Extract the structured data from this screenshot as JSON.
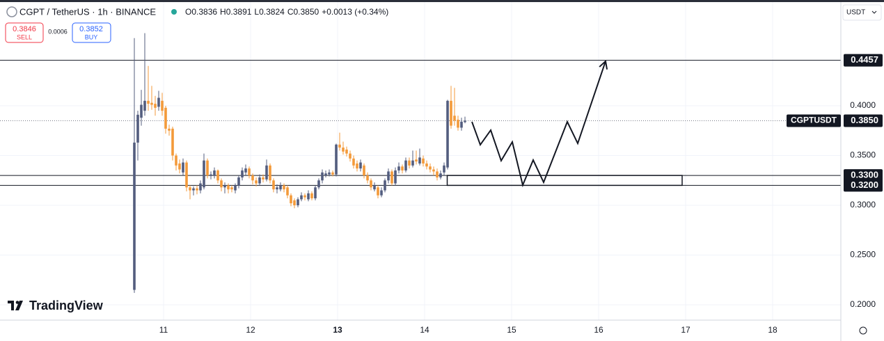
{
  "chart_data": {
    "type": "candlestick",
    "title": "CGPT / TetherUS · 1h · BINANCE",
    "header_values": [
      "O0.3836",
      "H0.3891",
      "L0.3824",
      "C0.3850",
      "+0.0013 (+0.34%)"
    ],
    "trade": {
      "sell_price": "0.3846",
      "sell_label": "SELL",
      "spread": "0.0006",
      "buy_price": "0.3852",
      "buy_label": "BUY"
    },
    "currency": "USDT",
    "watermark": "TradingView",
    "symbol_label": "CGPTUSDT",
    "up_color": "#535d7e",
    "down_color": "#f39a3a",
    "grid": true,
    "xlim": [
      9.12,
      18.784
    ],
    "ylim": [
      0.1846,
      0.5063
    ],
    "xticks": [
      11,
      12,
      13,
      14,
      15,
      16,
      17,
      18
    ],
    "bold_xticks": [
      13
    ],
    "yticks": [
      {
        "value": 0.2,
        "label": "0.2000"
      },
      {
        "value": 0.25,
        "label": "0.2500"
      },
      {
        "value": 0.3,
        "label": "0.3000"
      },
      {
        "value": 0.35,
        "label": "0.3500"
      },
      {
        "value": 0.4,
        "label": "0.4000"
      }
    ],
    "x": [
      10.664,
      10.704,
      10.744,
      10.784,
      10.824,
      10.864,
      10.904,
      10.944,
      10.984,
      11.024,
      11.064,
      11.104,
      11.144,
      11.184,
      11.224,
      11.264,
      11.304,
      11.344,
      11.384,
      11.424,
      11.464,
      11.504,
      11.544,
      11.584,
      11.624,
      11.664,
      11.704,
      11.744,
      11.784,
      11.824,
      11.864,
      11.904,
      11.944,
      11.984,
      12.024,
      12.064,
      12.104,
      12.144,
      12.184,
      12.224,
      12.264,
      12.304,
      12.344,
      12.384,
      12.424,
      12.464,
      12.504,
      12.544,
      12.584,
      12.624,
      12.664,
      12.704,
      12.744,
      12.784,
      12.824,
      12.864,
      12.904,
      12.944,
      12.984,
      13.024,
      13.064,
      13.104,
      13.144,
      13.184,
      13.224,
      13.264,
      13.304,
      13.344,
      13.384,
      13.424,
      13.464,
      13.504,
      13.544,
      13.584,
      13.624,
      13.664,
      13.704,
      13.744,
      13.784,
      13.824,
      13.864,
      13.904,
      13.944,
      13.984,
      14.024,
      14.064,
      14.104,
      14.144,
      14.184,
      14.224,
      14.264,
      14.304,
      14.344,
      14.384,
      14.424,
      14.464
    ],
    "open": [
      0.215,
      0.363,
      0.388,
      0.395,
      0.405,
      0.403,
      0.402,
      0.399,
      0.405,
      0.398,
      0.377,
      0.377,
      0.35,
      0.342,
      0.333,
      0.343,
      0.318,
      0.315,
      0.317,
      0.315,
      0.318,
      0.345,
      0.33,
      0.33,
      0.335,
      0.325,
      0.318,
      0.32,
      0.318,
      0.315,
      0.32,
      0.328,
      0.333,
      0.337,
      0.33,
      0.325,
      0.322,
      0.328,
      0.326,
      0.34,
      0.325,
      0.316,
      0.316,
      0.32,
      0.318,
      0.31,
      0.305,
      0.3,
      0.306,
      0.31,
      0.306,
      0.312,
      0.307,
      0.318,
      0.325,
      0.33,
      0.331,
      0.333,
      0.331,
      0.361,
      0.358,
      0.356,
      0.352,
      0.347,
      0.342,
      0.337,
      0.34,
      0.33,
      0.325,
      0.316,
      0.318,
      0.31,
      0.315,
      0.325,
      0.334,
      0.322,
      0.335,
      0.339,
      0.335,
      0.345,
      0.34,
      0.346,
      0.342,
      0.347,
      0.342,
      0.339,
      0.336,
      0.334,
      0.328,
      0.333,
      0.338,
      0.405,
      0.39,
      0.386,
      0.378,
      0.3836
    ],
    "high": [
      0.468,
      0.395,
      0.416,
      0.473,
      0.44,
      0.42,
      0.41,
      0.415,
      0.413,
      0.4,
      0.381,
      0.379,
      0.352,
      0.346,
      0.347,
      0.345,
      0.32,
      0.319,
      0.32,
      0.325,
      0.352,
      0.347,
      0.334,
      0.338,
      0.336,
      0.327,
      0.323,
      0.322,
      0.32,
      0.322,
      0.33,
      0.338,
      0.341,
      0.339,
      0.332,
      0.328,
      0.331,
      0.331,
      0.346,
      0.342,
      0.327,
      0.321,
      0.323,
      0.322,
      0.32,
      0.312,
      0.307,
      0.308,
      0.313,
      0.312,
      0.315,
      0.314,
      0.32,
      0.327,
      0.336,
      0.335,
      0.336,
      0.335,
      0.362,
      0.373,
      0.364,
      0.359,
      0.355,
      0.35,
      0.345,
      0.346,
      0.342,
      0.333,
      0.327,
      0.323,
      0.32,
      0.318,
      0.327,
      0.337,
      0.336,
      0.338,
      0.343,
      0.341,
      0.348,
      0.348,
      0.355,
      0.355,
      0.357,
      0.35,
      0.345,
      0.342,
      0.339,
      0.337,
      0.335,
      0.343,
      0.406,
      0.42,
      0.418,
      0.39,
      0.388,
      0.3891
    ],
    "low": [
      0.212,
      0.345,
      0.38,
      0.39,
      0.395,
      0.396,
      0.39,
      0.395,
      0.39,
      0.372,
      0.37,
      0.345,
      0.335,
      0.332,
      0.33,
      0.314,
      0.306,
      0.31,
      0.311,
      0.312,
      0.316,
      0.327,
      0.326,
      0.327,
      0.322,
      0.314,
      0.312,
      0.312,
      0.313,
      0.312,
      0.317,
      0.325,
      0.33,
      0.327,
      0.321,
      0.319,
      0.32,
      0.323,
      0.324,
      0.322,
      0.313,
      0.312,
      0.314,
      0.313,
      0.307,
      0.299,
      0.297,
      0.298,
      0.304,
      0.305,
      0.304,
      0.305,
      0.305,
      0.316,
      0.322,
      0.328,
      0.329,
      0.329,
      0.329,
      0.355,
      0.351,
      0.349,
      0.344,
      0.337,
      0.334,
      0.334,
      0.327,
      0.322,
      0.315,
      0.314,
      0.307,
      0.308,
      0.313,
      0.322,
      0.32,
      0.32,
      0.332,
      0.332,
      0.333,
      0.337,
      0.338,
      0.341,
      0.34,
      0.339,
      0.336,
      0.333,
      0.33,
      0.325,
      0.326,
      0.33,
      0.336,
      0.377,
      0.38,
      0.375,
      0.375,
      0.3824
    ],
    "close": [
      0.363,
      0.391,
      0.401,
      0.405,
      0.402,
      0.401,
      0.398,
      0.408,
      0.395,
      0.377,
      0.375,
      0.35,
      0.34,
      0.336,
      0.343,
      0.318,
      0.315,
      0.317,
      0.315,
      0.322,
      0.345,
      0.33,
      0.331,
      0.335,
      0.325,
      0.318,
      0.32,
      0.316,
      0.316,
      0.32,
      0.328,
      0.335,
      0.337,
      0.33,
      0.325,
      0.322,
      0.328,
      0.326,
      0.34,
      0.325,
      0.316,
      0.318,
      0.32,
      0.316,
      0.31,
      0.302,
      0.3,
      0.306,
      0.31,
      0.308,
      0.312,
      0.307,
      0.318,
      0.325,
      0.333,
      0.332,
      0.333,
      0.331,
      0.361,
      0.358,
      0.354,
      0.352,
      0.347,
      0.34,
      0.337,
      0.343,
      0.33,
      0.325,
      0.318,
      0.32,
      0.31,
      0.315,
      0.325,
      0.334,
      0.322,
      0.335,
      0.339,
      0.335,
      0.345,
      0.34,
      0.345,
      0.344,
      0.348,
      0.342,
      0.339,
      0.336,
      0.334,
      0.328,
      0.332,
      0.34,
      0.405,
      0.38,
      0.385,
      0.378,
      0.384,
      0.385
    ],
    "levels": [
      0.4457,
      {
        "value": 0.33,
        "label": "0.3300"
      },
      {
        "value": 0.32,
        "label": "0.3200"
      }
    ],
    "current_price": {
      "value": 0.385,
      "label": "0.3850"
    },
    "zone": {
      "x": [
        14.26,
        16.96
      ],
      "y": [
        0.32,
        0.33
      ]
    },
    "projection": {
      "x": [
        14.544,
        14.64,
        14.76,
        14.88,
        15.008,
        15.128,
        15.248,
        15.368,
        15.64,
        15.76,
        16.08
      ],
      "y": [
        0.3839,
        0.3608,
        0.3755,
        0.3448,
        0.3636,
        0.3203,
        0.3455,
        0.3231,
        0.3839,
        0.3622,
        0.4448
      ]
    }
  }
}
